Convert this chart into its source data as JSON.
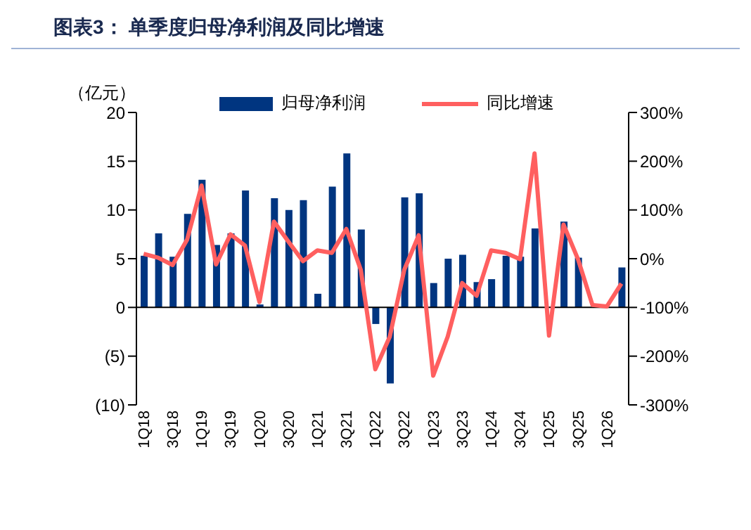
{
  "chart_data": {
    "type": "bar",
    "title": "图表3：  单季度归母净利润及同比增速",
    "ylabel": "（亿元）",
    "categories": [
      "1Q18",
      null,
      "3Q18",
      null,
      "1Q19",
      null,
      "3Q19",
      null,
      "1Q20",
      null,
      "3Q20",
      null,
      "1Q21",
      null,
      "3Q21",
      null,
      "1Q22",
      null,
      "3Q22",
      null,
      "1Q23",
      null,
      "3Q23",
      null,
      "1Q24",
      null,
      "3Q24",
      null,
      "1Q25",
      null,
      "3Q25",
      null,
      "1Q26",
      null
    ],
    "series": [
      {
        "name": "归母净利润",
        "color": "#003580",
        "values": [
          5.3,
          7.6,
          5.2,
          9.6,
          13.1,
          6.4,
          7.6,
          12.0,
          0.3,
          11.2,
          10.0,
          11.0,
          1.4,
          12.4,
          15.8,
          8.0,
          -1.7,
          -7.8,
          11.3,
          11.7,
          2.5,
          5.0,
          5.4,
          2.6,
          2.9,
          5.3,
          5.2,
          8.1,
          null,
          8.8,
          5.1,
          0,
          0,
          4.1
        ]
      },
      {
        "name": "同比增速",
        "type": "line",
        "axis": "y2",
        "color": "#ff5f5f",
        "values": [
          10,
          2,
          -13,
          39,
          150,
          -12,
          50,
          27,
          -89,
          76,
          35,
          -5,
          17,
          12,
          61,
          -23,
          -227,
          -160,
          -23,
          48,
          -240,
          -160,
          -50,
          -76,
          17,
          12,
          -1,
          216,
          -158,
          70,
          -1,
          -95,
          -98,
          -51
        ]
      }
    ],
    "ylim": [
      -10,
      20
    ],
    "yticks": [
      {
        "value": -10,
        "label": "(10)"
      },
      {
        "value": -5,
        "label": "(5)"
      },
      0,
      5,
      10,
      15,
      20
    ],
    "y2lim": [
      -300,
      300
    ],
    "y2ticks": [
      {
        "value": -300,
        "label": "-300%"
      },
      {
        "value": -200,
        "label": "-200%"
      },
      {
        "value": -100,
        "label": "-100%"
      },
      {
        "value": 0,
        "label": "0%"
      },
      {
        "value": 100,
        "label": "100%"
      },
      {
        "value": 200,
        "label": "200%"
      },
      {
        "value": 300,
        "label": "300%"
      }
    ],
    "legend": "top",
    "marker": "none"
  }
}
